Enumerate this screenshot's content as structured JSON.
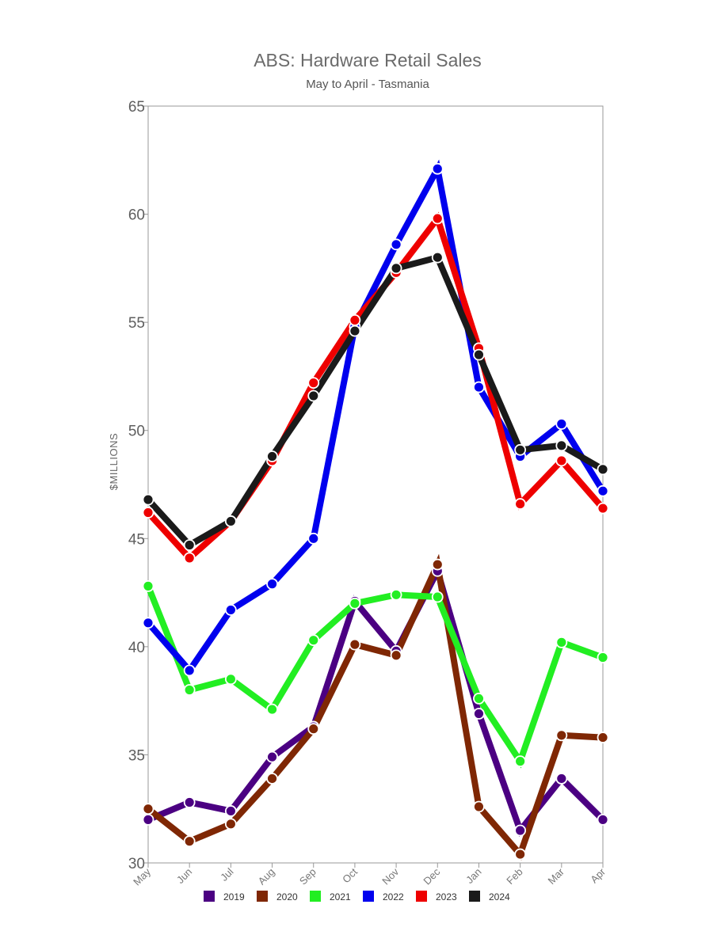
{
  "chart_data": {
    "type": "line",
    "title": "ABS: Hardware Retail Sales",
    "subtitle": "May to April - Tasmania",
    "ylabel": "$MILLIONS",
    "xlabel": "",
    "ylim": [
      30,
      65
    ],
    "yticks": [
      30,
      35,
      40,
      45,
      50,
      55,
      60,
      65
    ],
    "categories": [
      "May",
      "Jun",
      "Jul",
      "Aug",
      "Sep",
      "Oct",
      "Nov",
      "Dec",
      "Jan",
      "Feb",
      "Mar",
      "Apr"
    ],
    "grid": false,
    "legend_position": "bottom",
    "series": [
      {
        "name": "2019",
        "color": "#4b0082",
        "values": [
          32.0,
          32.8,
          32.4,
          34.9,
          36.3,
          42.1,
          39.8,
          43.5,
          36.9,
          31.5,
          33.9,
          32.0
        ]
      },
      {
        "name": "2020",
        "color": "#7f2704",
        "values": [
          32.5,
          31.0,
          31.8,
          33.9,
          36.2,
          40.1,
          39.6,
          43.8,
          32.6,
          30.4,
          35.9,
          35.8
        ]
      },
      {
        "name": "2021",
        "color": "#22ee22",
        "values": [
          42.8,
          38.0,
          38.5,
          37.1,
          40.3,
          42.0,
          42.4,
          42.3,
          37.6,
          34.7,
          40.2,
          39.5
        ]
      },
      {
        "name": "2022",
        "color": "#0000ee",
        "values": [
          41.1,
          38.9,
          41.7,
          42.9,
          45.0,
          54.8,
          58.6,
          62.1,
          52.0,
          48.8,
          50.3,
          47.2
        ]
      },
      {
        "name": "2023",
        "color": "#ee0000",
        "values": [
          46.2,
          44.1,
          45.8,
          48.6,
          52.2,
          55.1,
          57.3,
          59.8,
          53.8,
          46.6,
          48.6,
          46.4
        ]
      },
      {
        "name": "2024",
        "color": "#1a1a1a",
        "values": [
          46.8,
          44.7,
          45.8,
          48.8,
          51.6,
          54.6,
          57.5,
          58.0,
          53.5,
          49.1,
          49.3,
          48.2
        ]
      }
    ]
  }
}
